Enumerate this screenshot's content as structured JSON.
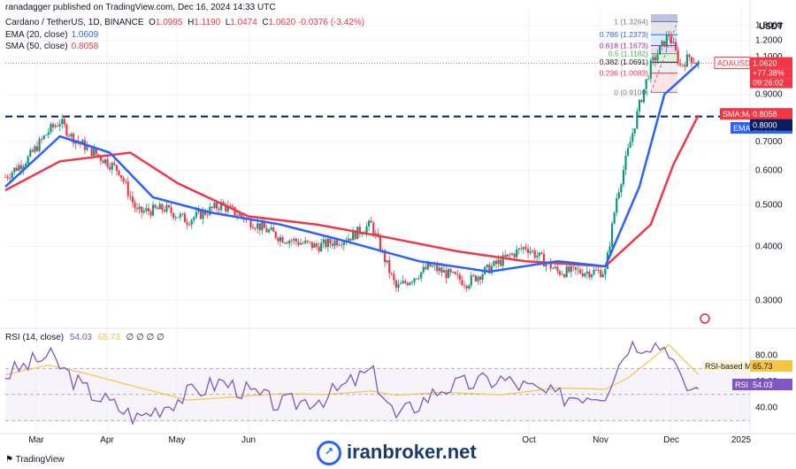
{
  "header": {
    "user_line": "ranadagger published on TradingView.com, Dec 16, 2024 14:33 UTC",
    "symbol": "Cardano / TetherUS, 1D, BINANCE",
    "o_label": "O",
    "o_val": "1.0995",
    "h_label": "H",
    "h_val": "1.1190",
    "l_label": "L",
    "l_val": "1.0474",
    "c_label": "C",
    "c_val": "1.0620",
    "change_val": "-0.0376 (-3.42%)",
    "ema_label": "EMA (20, close)",
    "ema_val": "1.0609",
    "sma_label": "SMA (50, close)",
    "sma_val": "0.8058",
    "rsi_label": "RSI (14, close)",
    "rsi_val": "54.03",
    "rsi_ma_val": "65.73",
    "rsi_extra": "∅ ∅ ∅ ∅"
  },
  "price_axis": {
    "currency": "USDT",
    "ticks": [
      "1.3000",
      "1.2000",
      "1.1000",
      "0.9000",
      "0.7000",
      "0.6000",
      "0.5000",
      "0.4000",
      "0.3000"
    ]
  },
  "tags": {
    "symbol_tag": "ADAUSDT",
    "price": "1.0620",
    "change": "+77.38%",
    "countdown": "09:26:02",
    "ema_tag": "EMA",
    "ema_value": "1.0609",
    "sma_tag": "SMA:MA",
    "sma_value": "0.8058",
    "level_value": "0.8000",
    "rsi_ma_tag": "RSI-based MA",
    "rsi_ma_value": "65.73",
    "rsi_tag": "RSI",
    "rsi_value": "54.03"
  },
  "rsi_axis": {
    "ticks": [
      "80.00",
      "60.00",
      "40.00"
    ]
  },
  "time_axis": [
    "Mar",
    "Apr",
    "May",
    "Jun",
    "Oct",
    "Nov",
    "Dec",
    "2025"
  ],
  "fib_levels": [
    {
      "ratio": "1",
      "price": "(1.3264)",
      "value": 1.3264,
      "color": "#787b86"
    },
    {
      "ratio": "0.786",
      "price": "(1.2373)",
      "value": 1.2373,
      "color": "#2962ff"
    },
    {
      "ratio": "0.618",
      "price": "(1.1673)",
      "value": 1.1673,
      "color": "#9c27b0"
    },
    {
      "ratio": "0.5",
      "price": "(1.1182)",
      "value": 1.1182,
      "color": "#4caf50"
    },
    {
      "ratio": "0.382",
      "price": "(1.0691)",
      "value": 1.0691,
      "color": "#131722"
    },
    {
      "ratio": "0.236",
      "price": "(1.0083)",
      "value": 1.0083,
      "color": "#f23645"
    },
    {
      "ratio": "0",
      "price": "(0.9100)",
      "value": 0.91,
      "color": "#787b86"
    }
  ],
  "footer": {
    "brand": "TradingView",
    "watermark": "iranbroker.net"
  },
  "colors": {
    "up": "#089981",
    "down": "#f23645",
    "ema": "#2962ff",
    "sma": "#f23645",
    "rsi": "#7e57c2",
    "rsi_ma": "#f7c541",
    "level": "#0a1d5c"
  },
  "chart_data": {
    "type": "candlestick",
    "symbol": "ADAUSDT",
    "interval": "1D",
    "y_scale": "log",
    "ylim": [
      0.26,
      1.42
    ],
    "horizontal_level": 0.8,
    "current_price": 1.062,
    "ema20_last": 1.0609,
    "sma50_last": 0.8058,
    "series": [
      {
        "name": "Price (approx. close)",
        "points": [
          [
            "2024-02-15",
            0.58
          ],
          [
            "2024-02-25",
            0.64
          ],
          [
            "2024-03-05",
            0.74
          ],
          [
            "2024-03-10",
            0.78
          ],
          [
            "2024-03-15",
            0.72
          ],
          [
            "2024-03-25",
            0.66
          ],
          [
            "2024-04-05",
            0.6
          ],
          [
            "2024-04-13",
            0.48
          ],
          [
            "2024-04-25",
            0.49
          ],
          [
            "2024-05-05",
            0.46
          ],
          [
            "2024-05-20",
            0.5
          ],
          [
            "2024-06-01",
            0.46
          ],
          [
            "2024-06-15",
            0.42
          ],
          [
            "2024-07-01",
            0.4
          ],
          [
            "2024-07-15",
            0.42
          ],
          [
            "2024-07-25",
            0.45
          ],
          [
            "2024-08-05",
            0.32
          ],
          [
            "2024-08-20",
            0.36
          ],
          [
            "2024-09-05",
            0.33
          ],
          [
            "2024-09-20",
            0.37
          ],
          [
            "2024-10-01",
            0.4
          ],
          [
            "2024-10-15",
            0.35
          ],
          [
            "2024-11-05",
            0.35
          ],
          [
            "2024-11-10",
            0.52
          ],
          [
            "2024-11-20",
            0.85
          ],
          [
            "2024-11-25",
            1.05
          ],
          [
            "2024-12-03",
            1.24
          ],
          [
            "2024-12-08",
            1.05
          ],
          [
            "2024-12-12",
            1.1
          ],
          [
            "2024-12-16",
            1.062
          ]
        ]
      },
      {
        "name": "EMA (20, close)",
        "points": [
          [
            "2024-02-15",
            0.55
          ],
          [
            "2024-03-10",
            0.72
          ],
          [
            "2024-04-01",
            0.66
          ],
          [
            "2024-04-20",
            0.52
          ],
          [
            "2024-05-15",
            0.48
          ],
          [
            "2024-06-15",
            0.45
          ],
          [
            "2024-07-15",
            0.41
          ],
          [
            "2024-08-15",
            0.37
          ],
          [
            "2024-09-15",
            0.35
          ],
          [
            "2024-10-15",
            0.37
          ],
          [
            "2024-11-05",
            0.36
          ],
          [
            "2024-11-20",
            0.55
          ],
          [
            "2024-12-01",
            0.9
          ],
          [
            "2024-12-16",
            1.0609
          ]
        ]
      },
      {
        "name": "SMA (50, close)",
        "points": [
          [
            "2024-02-15",
            0.54
          ],
          [
            "2024-03-10",
            0.63
          ],
          [
            "2024-04-10",
            0.66
          ],
          [
            "2024-05-01",
            0.56
          ],
          [
            "2024-06-01",
            0.47
          ],
          [
            "2024-07-01",
            0.45
          ],
          [
            "2024-08-01",
            0.42
          ],
          [
            "2024-09-01",
            0.39
          ],
          [
            "2024-10-01",
            0.37
          ],
          [
            "2024-11-05",
            0.36
          ],
          [
            "2024-11-25",
            0.45
          ],
          [
            "2024-12-05",
            0.62
          ],
          [
            "2024-12-16",
            0.8058
          ]
        ]
      },
      {
        "name": "RSI (14, close)",
        "points": [
          [
            "2024-02-15",
            65
          ],
          [
            "2024-03-05",
            80
          ],
          [
            "2024-03-20",
            55
          ],
          [
            "2024-04-13",
            32
          ],
          [
            "2024-05-05",
            50
          ],
          [
            "2024-05-20",
            60
          ],
          [
            "2024-06-15",
            42
          ],
          [
            "2024-07-05",
            48
          ],
          [
            "2024-07-25",
            68
          ],
          [
            "2024-08-05",
            32
          ],
          [
            "2024-08-25",
            55
          ],
          [
            "2024-09-20",
            62
          ],
          [
            "2024-10-15",
            48
          ],
          [
            "2024-11-05",
            52
          ],
          [
            "2024-11-15",
            88
          ],
          [
            "2024-11-25",
            90
          ],
          [
            "2024-12-03",
            86
          ],
          [
            "2024-12-09",
            56
          ],
          [
            "2024-12-16",
            54.03
          ]
        ]
      }
    ]
  }
}
